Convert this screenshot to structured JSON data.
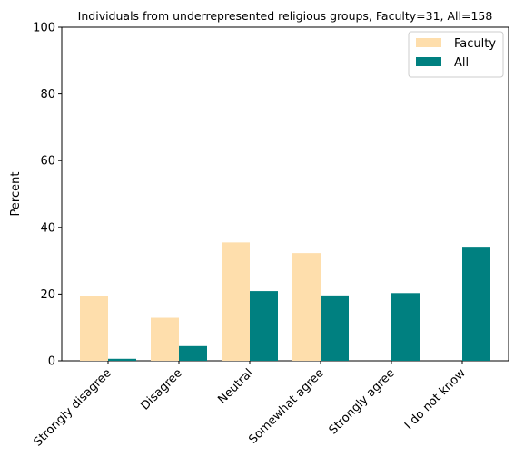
{
  "chart_data": {
    "type": "bar",
    "title": "Individuals from underrepresented religious groups, Faculty=31, All=158",
    "xlabel": "",
    "ylabel": "Percent",
    "ylim": [
      0,
      100
    ],
    "yticks": [
      "0",
      "20",
      "40",
      "60",
      "80",
      "100"
    ],
    "categories": [
      "Strongly disagree",
      "Disagree",
      "Neutral",
      "Somewhat agree",
      "Strongly agree",
      "I do not know"
    ],
    "series": [
      {
        "name": "Faculty",
        "color": "#fedeac",
        "values": [
          19.4,
          12.9,
          35.5,
          32.3,
          0,
          0
        ]
      },
      {
        "name": "All",
        "color": "#008080",
        "values": [
          0.6,
          4.4,
          20.9,
          19.6,
          20.3,
          34.2
        ]
      }
    ],
    "legend_position": "top-right",
    "grid": false
  }
}
